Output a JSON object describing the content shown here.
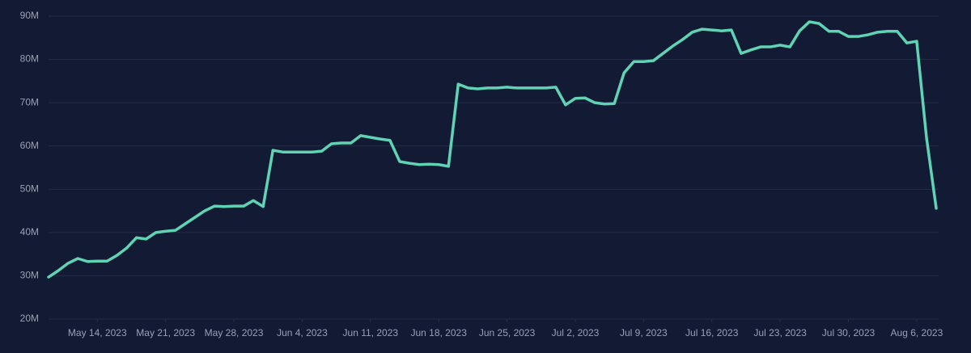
{
  "chart_data": {
    "type": "line",
    "x": [
      "2023-05-09",
      "2023-05-10",
      "2023-05-11",
      "2023-05-12",
      "2023-05-13",
      "2023-05-14",
      "2023-05-15",
      "2023-05-16",
      "2023-05-17",
      "2023-05-18",
      "2023-05-19",
      "2023-05-20",
      "2023-05-21",
      "2023-05-22",
      "2023-05-23",
      "2023-05-24",
      "2023-05-25",
      "2023-05-26",
      "2023-05-27",
      "2023-05-28",
      "2023-05-29",
      "2023-05-30",
      "2023-05-31",
      "2023-06-01",
      "2023-06-02",
      "2023-06-03",
      "2023-06-04",
      "2023-06-05",
      "2023-06-06",
      "2023-06-07",
      "2023-06-08",
      "2023-06-09",
      "2023-06-10",
      "2023-06-11",
      "2023-06-12",
      "2023-06-13",
      "2023-06-14",
      "2023-06-15",
      "2023-06-16",
      "2023-06-17",
      "2023-06-18",
      "2023-06-19",
      "2023-06-20",
      "2023-06-21",
      "2023-06-22",
      "2023-06-23",
      "2023-06-24",
      "2023-06-25",
      "2023-06-26",
      "2023-06-27",
      "2023-06-28",
      "2023-06-29",
      "2023-06-30",
      "2023-07-01",
      "2023-07-02",
      "2023-07-03",
      "2023-07-04",
      "2023-07-05",
      "2023-07-06",
      "2023-07-07",
      "2023-07-08",
      "2023-07-09",
      "2023-07-10",
      "2023-07-11",
      "2023-07-12",
      "2023-07-13",
      "2023-07-14",
      "2023-07-15",
      "2023-07-16",
      "2023-07-17",
      "2023-07-18",
      "2023-07-19",
      "2023-07-20",
      "2023-07-21",
      "2023-07-22",
      "2023-07-23",
      "2023-07-24",
      "2023-07-25",
      "2023-07-26",
      "2023-07-27",
      "2023-07-28",
      "2023-07-29",
      "2023-07-30",
      "2023-07-31",
      "2023-08-01",
      "2023-08-02",
      "2023-08-03",
      "2023-08-04",
      "2023-08-05",
      "2023-08-06",
      "2023-08-07",
      "2023-08-08"
    ],
    "series": [
      {
        "color": "#5fd3b3",
        "values": [
          29700000,
          31200000,
          32900000,
          34000000,
          33300000,
          33400000,
          33400000,
          34700000,
          36400000,
          38800000,
          38500000,
          40000000,
          40300000,
          40500000,
          42000000,
          43500000,
          45000000,
          46100000,
          46000000,
          46100000,
          46100000,
          47400000,
          46000000,
          59000000,
          58600000,
          58600000,
          58600000,
          58600000,
          58800000,
          60500000,
          60700000,
          60700000,
          62400000,
          62000000,
          61600000,
          61300000,
          56400000,
          56000000,
          55700000,
          55800000,
          55700000,
          55300000,
          74300000,
          73400000,
          73200000,
          73400000,
          73400000,
          73600000,
          73400000,
          73400000,
          73400000,
          73400000,
          73600000,
          69500000,
          71000000,
          71100000,
          70000000,
          69700000,
          69800000,
          76900000,
          79500000,
          79500000,
          79700000,
          81400000,
          83100000,
          84600000,
          86300000,
          87000000,
          86800000,
          86600000,
          86800000,
          81400000,
          82200000,
          82900000,
          82900000,
          83300000,
          82900000,
          86600000,
          88700000,
          88300000,
          86500000,
          86500000,
          85300000,
          85300000,
          85700000,
          86300000,
          86500000,
          86500000,
          83800000,
          84200000,
          62000000,
          45600000
        ]
      }
    ],
    "xticks": [
      {
        "value": "2023-05-14",
        "label": "May 14, 2023"
      },
      {
        "value": "2023-05-21",
        "label": "May 21, 2023"
      },
      {
        "value": "2023-05-28",
        "label": "May 28, 2023"
      },
      {
        "value": "2023-06-04",
        "label": "Jun 4, 2023"
      },
      {
        "value": "2023-06-11",
        "label": "Jun 11, 2023"
      },
      {
        "value": "2023-06-18",
        "label": "Jun 18, 2023"
      },
      {
        "value": "2023-06-25",
        "label": "Jun 25, 2023"
      },
      {
        "value": "2023-07-02",
        "label": "Jul 2, 2023"
      },
      {
        "value": "2023-07-09",
        "label": "Jul 9, 2023"
      },
      {
        "value": "2023-07-16",
        "label": "Jul 16, 2023"
      },
      {
        "value": "2023-07-23",
        "label": "Jul 23, 2023"
      },
      {
        "value": "2023-07-30",
        "label": "Jul 30, 2023"
      },
      {
        "value": "2023-08-06",
        "label": "Aug 6, 2023"
      }
    ],
    "ylim": [
      20000000,
      90000000
    ],
    "yticks": [
      {
        "value": 20000000,
        "label": "20M"
      },
      {
        "value": 30000000,
        "label": "30M"
      },
      {
        "value": 40000000,
        "label": "40M"
      },
      {
        "value": 50000000,
        "label": "50M"
      },
      {
        "value": 60000000,
        "label": "60M"
      },
      {
        "value": 70000000,
        "label": "70M"
      },
      {
        "value": 80000000,
        "label": "80M"
      },
      {
        "value": 90000000,
        "label": "90M"
      }
    ],
    "grid": true
  }
}
